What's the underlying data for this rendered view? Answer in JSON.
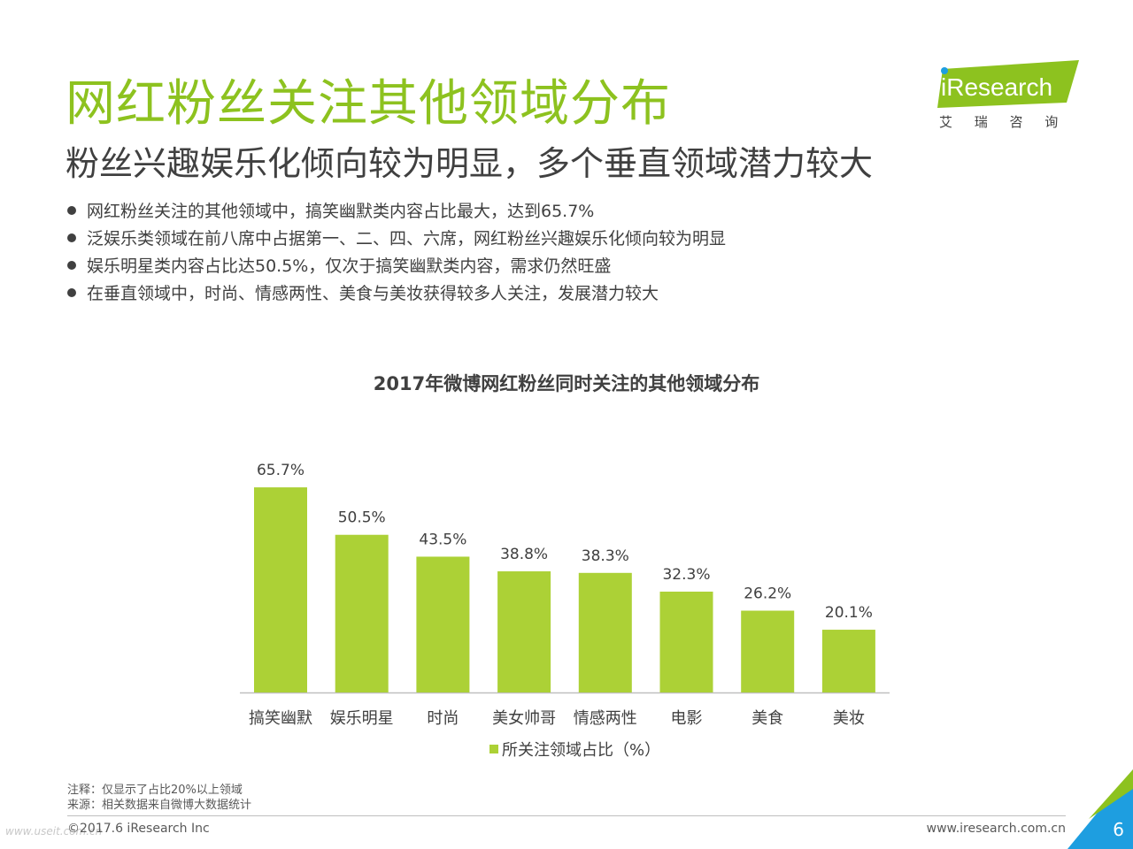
{
  "header": {
    "title": "网红粉丝关注其他领域分布",
    "subtitle": "粉丝兴趣娱乐化倾向较为明显，多个垂直领域潜力较大"
  },
  "bullets": [
    "网红粉丝关注的其他领域中，搞笑幽默类内容占比最大，达到65.7%",
    "泛娱乐类领域在前八席中占据第一、二、四、六席，网红粉丝兴趣娱乐化倾向较为明显",
    "娱乐明星类内容占比达50.5%，仅次于搞笑幽默类内容，需求仍然旺盛",
    "在垂直领域中，时尚、情感两性、美食与美妆获得较多人关注，发展潜力较大"
  ],
  "logo": {
    "text": "iResearch",
    "chinese": "艾 瑞 咨 询",
    "icon": "ireseach-logo"
  },
  "colors": {
    "accent": "#8dc21f",
    "bar": "#acd136",
    "text": "#404040",
    "corner_blue": "#1e9ee0"
  },
  "chart_data": {
    "type": "bar",
    "title": "2017年微博网红粉丝同时关注的其他领域分布",
    "categories": [
      "搞笑幽默",
      "娱乐明星",
      "时尚",
      "美女帅哥",
      "情感两性",
      "电影",
      "美食",
      "美妆"
    ],
    "series": [
      {
        "name": "所关注领域占比（%）",
        "values": [
          65.7,
          50.5,
          43.5,
          38.8,
          38.3,
          32.3,
          26.2,
          20.1
        ],
        "labels": [
          "65.7%",
          "50.5%",
          "43.5%",
          "38.8%",
          "38.3%",
          "32.3%",
          "26.2%",
          "20.1%"
        ]
      }
    ],
    "legend": "bottom",
    "grid": false
  },
  "footer": {
    "note": "注释：仅显示了占比20%以上领域",
    "source": "来源：相关数据来自微博大数据统计",
    "copyright": "©2017.6 iResearch Inc",
    "website": "www.iresearch.com.cn",
    "page_number": "6",
    "watermark": "www.useit.com.cn"
  }
}
